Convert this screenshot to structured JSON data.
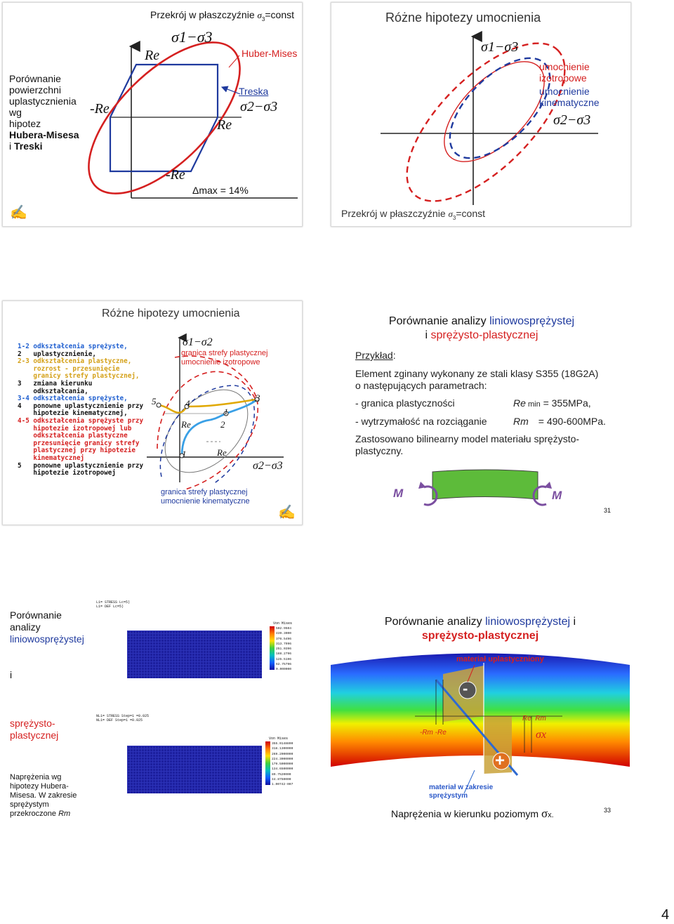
{
  "slide1": {
    "title": "Przekrój w płaszczyźnie ",
    "title_sigma": "σ",
    "title_sub": "3",
    "title_const": "=const",
    "axis_label": "σ1−σ3",
    "re_top": "Re",
    "re_right": "Re",
    "re_left": "-Re",
    "re_bottom": "-Re",
    "huber": "Huber-Mises",
    "treska": "Treska",
    "axis2": "σ2−σ3",
    "delta": "Δmax = 14%",
    "side_lines": [
      "Porównanie",
      "powierzchni",
      "uplastycznienia",
      "wg",
      "hipotez"
    ],
    "side_bold1": "Hubera-Misesa",
    "side_i": "i ",
    "side_bold2": "Treski",
    "pen": "✍"
  },
  "slide2": {
    "title": "Różne hipotezy umocnienia",
    "axis1": "σ1−σ3",
    "izo1": "umocnienie",
    "izo2": "izotropowe",
    "kin1": "umocnienie",
    "kin2": "kinematyczne",
    "axis2": "σ2−σ3",
    "footer": "Przekrój w płaszczyźnie ",
    "footer_sigma": "σ",
    "footer_sub": "3",
    "footer_const": "=const"
  },
  "slide3": {
    "title": "Różne hipotezy umocnienia",
    "legend": [
      {
        "text": "1-2 odkształcenia sprężyste,",
        "color": "#1f5fd0"
      },
      {
        "text": "2   uplastycznienie,",
        "color": "#111111"
      },
      {
        "text": "2-3 odkształcenia plastyczne,",
        "color": "#d4a017"
      },
      {
        "text": "    rozrost - przesunięcie",
        "color": "#d4a017"
      },
      {
        "text": "    granicy strefy plastycznej,",
        "color": "#d4a017"
      },
      {
        "text": "3   zmiana kierunku",
        "color": "#111111"
      },
      {
        "text": "    odkształcania,",
        "color": "#111111"
      },
      {
        "text": "3-4 odkształcenia sprężyste,",
        "color": "#1f5fd0"
      },
      {
        "text": "4   ponowne uplastycznienie przy",
        "color": "#111111"
      },
      {
        "text": "    hipotezie kinematycznej,",
        "color": "#111111"
      },
      {
        "text": "4-5 odkształcenia sprężyste przy",
        "color": "#d52020"
      },
      {
        "text": "    hipotezie izotropowej lub",
        "color": "#d52020"
      },
      {
        "text": "    odkształcenia plastyczne",
        "color": "#d52020"
      },
      {
        "text": "    przesunięcie granicy strefy",
        "color": "#d52020"
      },
      {
        "text": "    plastycznej przy hipotezie",
        "color": "#d52020"
      },
      {
        "text": "    kinematycznej",
        "color": "#d52020"
      },
      {
        "text": "5   ponowne uplastycznienie przy",
        "color": "#111111"
      },
      {
        "text": "    hipotezie izotropowej",
        "color": "#111111"
      }
    ],
    "axis1": "σ1−σ2",
    "red_label1": "granica strefy plastycznej",
    "red_label2": "umocnienie izotropowe",
    "blue_label1": "granica strefy plastycznej",
    "blue_label2": "umocnienie kinematyczne",
    "axis2": "σ2−σ3",
    "pt1": "1",
    "pt1b": "1",
    "pt2": "2",
    "pt3": "3",
    "pt4": "4",
    "pt5": "5",
    "re1": "Re",
    "re2": "Re",
    "pen": "✍"
  },
  "slide4": {
    "title1": "Porównanie analizy ",
    "title1_blue": "liniowosprężystej",
    "title2_i": "i ",
    "title2_red": "sprężysto-plastycznej",
    "example": "Przykład",
    "example_colon": ":",
    "line1": "Element zginany wykonany ze stali klasy S355 (18G2A)",
    "line2": "o następujących parametrach:",
    "param1_label": "- granica plastyczności",
    "param1_sym": "Re",
    "param1_sub": " min",
    "param1_val": " = 355MPa,",
    "param2_label": "- wytrzymałość na rozciąganie",
    "param2_sym": "Rm",
    "param2_val": "= 490-600MPa.",
    "line3": "Zastosowano bilinearny model materiału sprężysto-",
    "line4": "plastyczny.",
    "m_left": "M",
    "m_right": "M",
    "page": "31"
  },
  "slide5": {
    "side1": "Porównanie",
    "side2": "analizy",
    "side3": "liniowosprężystej",
    "side4": "i",
    "side5": "sprężysto-",
    "side6": "plastycznej",
    "note1": "Naprężenia wg",
    "note2": "hipotezy Hubera-",
    "note3": "Misesa. W zakresie",
    "note4": "sprężystym",
    "note5": "przekroczone ",
    "note5_sym": "Rm",
    "top_hdr1": "L1= STRESS Lc=5)",
    "top_hdr2": "L1= DEF Lc=5)",
    "top_scale_title": "Von Mises",
    "top_scale": [
      "502.9504",
      "439.3000",
      "376.5496",
      "313.7996",
      "251.0396",
      "188.2796",
      "125.5196",
      "62.75796",
      "0.000000"
    ],
    "bot_hdr1": "NL1= STRESS Step=1   =0.025",
    "bot_hdr2": "NL1= DEF Step=1     =0.025",
    "bot_scale_title": "Von Mises",
    "bot_scale": [
      "355.0148800",
      "318.1300000",
      "269.2000000",
      "224.3000000",
      "179.5000000",
      "134.6500000",
      "89.7520000",
      "44.8750000",
      "1.00742-007"
    ]
  },
  "slide6": {
    "title1": "Porównanie analizy ",
    "title1_blue": "liniowosprężystej",
    "title1_i": " i",
    "title2_red": "sprężysto-plastycznej",
    "top_label": "materiał uplastyczniony",
    "bottom_label1": "materiał w zakresie",
    "bottom_label2": "sprężystym",
    "minus": "-",
    "plus": "+",
    "rm_re_left": "-Rm -Re",
    "re_rm_right": "Re  Rm",
    "sigma_x": "σx",
    "caption": "Naprężenia w kierunku poziomym ",
    "caption_sigma": "σ",
    "caption_sub": "x.",
    "page": "33"
  },
  "page_number": "4"
}
